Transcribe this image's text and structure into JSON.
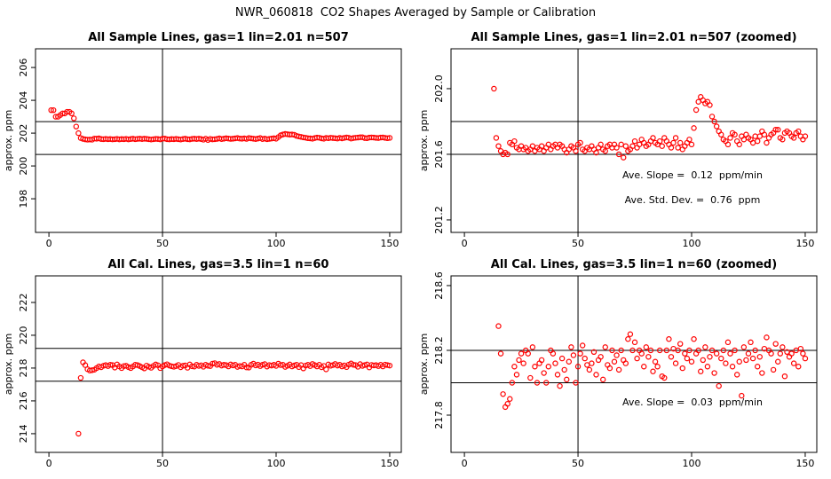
{
  "title": "NWR_060818  CO2 Shapes Averaged by Sample or Calibration",
  "chart_data": [
    {
      "type": "scatter",
      "title": "All Sample Lines, gas=1 lin=2.01 n=507",
      "ylabel": "approx. ppm",
      "color": "#ff0000",
      "xlim": [
        -5.9,
        155.1
      ],
      "ylim": [
        195.95,
        207.14
      ],
      "xticks": [
        0,
        50,
        100,
        150
      ],
      "yticks": [
        198,
        200,
        202,
        204,
        206
      ],
      "hlines": [
        200.7,
        202.7
      ],
      "vline": 50,
      "x": [
        1,
        2,
        3,
        4,
        5,
        6,
        7,
        8,
        9,
        10,
        11,
        12,
        13,
        14,
        15,
        16,
        17,
        18,
        19,
        20,
        21,
        22,
        23,
        24,
        25,
        26,
        27,
        28,
        29,
        30,
        31,
        32,
        33,
        34,
        35,
        36,
        37,
        38,
        39,
        40,
        41,
        42,
        43,
        44,
        45,
        46,
        47,
        48,
        49,
        50,
        51,
        52,
        53,
        54,
        55,
        56,
        57,
        58,
        59,
        60,
        61,
        62,
        63,
        64,
        65,
        66,
        67,
        68,
        69,
        70,
        71,
        72,
        73,
        74,
        75,
        76,
        77,
        78,
        79,
        80,
        81,
        82,
        83,
        84,
        85,
        86,
        87,
        88,
        89,
        90,
        91,
        92,
        93,
        94,
        95,
        96,
        97,
        98,
        99,
        100,
        101,
        102,
        103,
        104,
        105,
        106,
        107,
        108,
        109,
        110,
        111,
        112,
        113,
        114,
        115,
        116,
        117,
        118,
        119,
        120,
        121,
        122,
        123,
        124,
        125,
        126,
        127,
        128,
        129,
        130,
        131,
        132,
        133,
        134,
        135,
        136,
        137,
        138,
        139,
        140,
        141,
        142,
        143,
        144,
        145,
        146,
        147,
        148,
        149,
        150
      ],
      "values": [
        203.4,
        203.4,
        203.0,
        203.0,
        203.1,
        203.2,
        203.2,
        203.3,
        203.3,
        203.2,
        202.9,
        202.4,
        202.0,
        201.7,
        201.65,
        201.62,
        201.6,
        201.61,
        201.6,
        201.67,
        201.66,
        201.68,
        201.64,
        201.63,
        201.65,
        201.63,
        201.64,
        201.62,
        201.63,
        201.65,
        201.62,
        201.64,
        201.63,
        201.65,
        201.62,
        201.64,
        201.66,
        201.63,
        201.65,
        201.66,
        201.64,
        201.66,
        201.65,
        201.63,
        201.61,
        201.63,
        201.65,
        201.64,
        201.62,
        201.66,
        201.67,
        201.63,
        201.62,
        201.64,
        201.63,
        201.65,
        201.63,
        201.61,
        201.64,
        201.66,
        201.63,
        201.62,
        201.65,
        201.66,
        201.64,
        201.66,
        201.64,
        201.6,
        201.66,
        201.58,
        201.65,
        201.62,
        201.63,
        201.65,
        201.68,
        201.64,
        201.66,
        201.69,
        201.67,
        201.65,
        201.66,
        201.68,
        201.7,
        201.67,
        201.66,
        201.68,
        201.65,
        201.7,
        201.68,
        201.66,
        201.64,
        201.67,
        201.7,
        201.64,
        201.67,
        201.63,
        201.65,
        201.67,
        201.69,
        201.66,
        201.76,
        201.87,
        201.92,
        201.95,
        201.93,
        201.91,
        201.92,
        201.9,
        201.83,
        201.8,
        201.77,
        201.74,
        201.72,
        201.69,
        201.68,
        201.66,
        201.7,
        201.73,
        201.72,
        201.68,
        201.66,
        201.71,
        201.69,
        201.72,
        201.7,
        201.69,
        201.67,
        201.71,
        201.68,
        201.71,
        201.74,
        201.72,
        201.67,
        201.7,
        201.72,
        201.73,
        201.75,
        201.75,
        201.7,
        201.69,
        201.73,
        201.74,
        201.73,
        201.71,
        201.7,
        201.73,
        201.74,
        201.71,
        201.69,
        201.71
      ]
    },
    {
      "type": "scatter",
      "title": "All Sample Lines, gas=1 lin=2.01 n=507 (zoomed)",
      "ylabel": "approx. ppm",
      "color": "#ff0000",
      "xlim": [
        -5.9,
        155.1
      ],
      "ylim": [
        201.124,
        202.243
      ],
      "xticks": [
        0,
        50,
        100,
        150
      ],
      "yticks": [
        201.2,
        201.6,
        {
          "value": 202,
          "label": "202.0"
        }
      ],
      "hlines": [
        201.6,
        201.8
      ],
      "vline": 50,
      "annotations": [
        "Ave. Slope =  0.12  ppm/min",
        "Ave. Std. Dev. =  0.76  ppm"
      ],
      "x": [
        13,
        14,
        15,
        16,
        17,
        18,
        19,
        20,
        21,
        22,
        23,
        24,
        25,
        26,
        27,
        28,
        29,
        30,
        31,
        32,
        33,
        34,
        35,
        36,
        37,
        38,
        39,
        40,
        41,
        42,
        43,
        44,
        45,
        46,
        47,
        48,
        49,
        50,
        51,
        52,
        53,
        54,
        55,
        56,
        57,
        58,
        59,
        60,
        61,
        62,
        63,
        64,
        65,
        66,
        67,
        68,
        69,
        70,
        71,
        72,
        73,
        74,
        75,
        76,
        77,
        78,
        79,
        80,
        81,
        82,
        83,
        84,
        85,
        86,
        87,
        88,
        89,
        90,
        91,
        92,
        93,
        94,
        95,
        96,
        97,
        98,
        99,
        100,
        101,
        102,
        103,
        104,
        105,
        106,
        107,
        108,
        109,
        110,
        111,
        112,
        113,
        114,
        115,
        116,
        117,
        118,
        119,
        120,
        121,
        122,
        123,
        124,
        125,
        126,
        127,
        128,
        129,
        130,
        131,
        132,
        133,
        134,
        135,
        136,
        137,
        138,
        139,
        140,
        141,
        142,
        143,
        144,
        145,
        146,
        147,
        148,
        149,
        150
      ],
      "values": [
        202.0,
        201.7,
        201.65,
        201.62,
        201.6,
        201.61,
        201.6,
        201.67,
        201.66,
        201.68,
        201.64,
        201.63,
        201.65,
        201.63,
        201.64,
        201.62,
        201.63,
        201.65,
        201.62,
        201.64,
        201.63,
        201.65,
        201.62,
        201.64,
        201.66,
        201.63,
        201.65,
        201.66,
        201.64,
        201.66,
        201.65,
        201.63,
        201.61,
        201.63,
        201.65,
        201.64,
        201.62,
        201.66,
        201.67,
        201.63,
        201.62,
        201.64,
        201.63,
        201.65,
        201.63,
        201.61,
        201.64,
        201.66,
        201.63,
        201.62,
        201.65,
        201.66,
        201.64,
        201.66,
        201.64,
        201.6,
        201.66,
        201.58,
        201.65,
        201.62,
        201.63,
        201.65,
        201.68,
        201.64,
        201.66,
        201.69,
        201.67,
        201.65,
        201.66,
        201.68,
        201.7,
        201.67,
        201.66,
        201.68,
        201.65,
        201.7,
        201.68,
        201.66,
        201.64,
        201.67,
        201.7,
        201.64,
        201.67,
        201.63,
        201.65,
        201.67,
        201.69,
        201.66,
        201.76,
        201.87,
        201.92,
        201.95,
        201.93,
        201.91,
        201.92,
        201.9,
        201.83,
        201.8,
        201.77,
        201.74,
        201.72,
        201.69,
        201.68,
        201.66,
        201.7,
        201.73,
        201.72,
        201.68,
        201.66,
        201.71,
        201.69,
        201.72,
        201.7,
        201.69,
        201.67,
        201.71,
        201.68,
        201.71,
        201.74,
        201.72,
        201.67,
        201.7,
        201.72,
        201.73,
        201.75,
        201.75,
        201.7,
        201.69,
        201.73,
        201.74,
        201.73,
        201.71,
        201.7,
        201.73,
        201.74,
        201.71,
        201.69,
        201.71
      ]
    },
    {
      "type": "scatter",
      "title": "All Cal. Lines, gas=3.5 lin=1 n=60",
      "ylabel": "approx. ppm",
      "color": "#ff0000",
      "xlim": [
        -5.9,
        155.1
      ],
      "ylim": [
        212.86,
        223.62
      ],
      "xticks": [
        0,
        50,
        100,
        150
      ],
      "yticks": [
        214,
        216,
        218,
        220,
        222
      ],
      "hlines": [
        217.2,
        219.2
      ],
      "vline": 50,
      "x": [
        13,
        14,
        15,
        16,
        17,
        18,
        19,
        20,
        21,
        22,
        23,
        24,
        25,
        26,
        27,
        28,
        29,
        30,
        31,
        32,
        33,
        34,
        35,
        36,
        37,
        38,
        39,
        40,
        41,
        42,
        43,
        44,
        45,
        46,
        47,
        48,
        49,
        50,
        51,
        52,
        53,
        54,
        55,
        56,
        57,
        58,
        59,
        60,
        61,
        62,
        63,
        64,
        65,
        66,
        67,
        68,
        69,
        70,
        71,
        72,
        73,
        74,
        75,
        76,
        77,
        78,
        79,
        80,
        81,
        82,
        83,
        84,
        85,
        86,
        87,
        88,
        89,
        90,
        91,
        92,
        93,
        94,
        95,
        96,
        97,
        98,
        99,
        100,
        101,
        102,
        103,
        104,
        105,
        106,
        107,
        108,
        109,
        110,
        111,
        112,
        113,
        114,
        115,
        116,
        117,
        118,
        119,
        120,
        121,
        122,
        123,
        124,
        125,
        126,
        127,
        128,
        129,
        130,
        131,
        132,
        133,
        134,
        135,
        136,
        137,
        138,
        139,
        140,
        141,
        142,
        143,
        144,
        145,
        146,
        147,
        148,
        149,
        150
      ],
      "values": [
        214.0,
        217.4,
        218.35,
        218.18,
        217.93,
        217.85,
        217.87,
        217.9,
        218.0,
        218.1,
        218.05,
        218.14,
        218.18,
        218.12,
        218.2,
        218.18,
        218.03,
        218.22,
        218.1,
        218.0,
        218.12,
        218.14,
        218.06,
        218.0,
        218.1,
        218.2,
        218.18,
        218.12,
        218.05,
        217.98,
        218.15,
        218.08,
        218.02,
        218.13,
        218.22,
        218.17,
        218.0,
        218.1,
        218.18,
        218.23,
        218.15,
        218.11,
        218.08,
        218.12,
        218.19,
        218.05,
        218.14,
        218.16,
        218.02,
        218.22,
        218.11,
        218.09,
        218.2,
        218.13,
        218.17,
        218.08,
        218.2,
        218.14,
        218.12,
        218.27,
        218.3,
        218.2,
        218.25,
        218.15,
        218.2,
        218.18,
        218.1,
        218.22,
        218.16,
        218.2,
        218.07,
        218.13,
        218.1,
        218.2,
        218.04,
        218.03,
        218.2,
        218.27,
        218.16,
        218.21,
        218.12,
        218.2,
        218.24,
        218.09,
        218.18,
        218.15,
        218.2,
        218.13,
        218.27,
        218.18,
        218.2,
        218.07,
        218.14,
        218.22,
        218.1,
        218.16,
        218.2,
        218.06,
        218.18,
        217.98,
        218.15,
        218.2,
        218.12,
        218.25,
        218.18,
        218.1,
        218.2,
        218.05,
        218.13,
        217.92,
        218.22,
        218.14,
        218.18,
        218.25,
        218.15,
        218.2,
        218.1,
        218.16,
        218.06,
        218.21,
        218.28,
        218.2,
        218.18,
        218.08,
        218.24,
        218.13,
        218.18,
        218.22,
        218.04,
        218.19,
        218.16,
        218.18,
        218.12,
        218.2,
        218.1,
        218.21,
        218.18,
        218.15
      ]
    },
    {
      "type": "scatter",
      "title": "All Cal. Lines, gas=3.5 lin=1 n=60 (zoomed)",
      "ylabel": "approx. ppm",
      "color": "#ff0000",
      "xlim": [
        -5.9,
        155.1
      ],
      "ylim": [
        217.57,
        218.66
      ],
      "xticks": [
        0,
        50,
        100,
        150
      ],
      "yticks": [
        217.8,
        218.2,
        218.6
      ],
      "hlines": [
        218.0,
        218.2
      ],
      "vline": 50,
      "annotations": [
        "Ave. Slope =  0.03  ppm/min"
      ],
      "x": [
        15,
        16,
        17,
        18,
        19,
        20,
        21,
        22,
        23,
        24,
        25,
        26,
        27,
        28,
        29,
        30,
        31,
        32,
        33,
        34,
        35,
        36,
        37,
        38,
        39,
        40,
        41,
        42,
        43,
        44,
        45,
        46,
        47,
        48,
        49,
        50,
        51,
        52,
        53,
        54,
        55,
        56,
        57,
        58,
        59,
        60,
        61,
        62,
        63,
        64,
        65,
        66,
        67,
        68,
        69,
        70,
        71,
        72,
        73,
        74,
        75,
        76,
        77,
        78,
        79,
        80,
        81,
        82,
        83,
        84,
        85,
        86,
        87,
        88,
        89,
        90,
        91,
        92,
        93,
        94,
        95,
        96,
        97,
        98,
        99,
        100,
        101,
        102,
        103,
        104,
        105,
        106,
        107,
        108,
        109,
        110,
        111,
        112,
        113,
        114,
        115,
        116,
        117,
        118,
        119,
        120,
        121,
        122,
        123,
        124,
        125,
        126,
        127,
        128,
        129,
        130,
        131,
        132,
        133,
        134,
        135,
        136,
        137,
        138,
        139,
        140,
        141,
        142,
        143,
        144,
        145,
        146,
        147,
        148,
        149,
        150
      ],
      "values": [
        218.35,
        218.18,
        217.93,
        217.85,
        217.87,
        217.9,
        218.0,
        218.1,
        218.05,
        218.14,
        218.18,
        218.12,
        218.2,
        218.18,
        218.03,
        218.22,
        218.1,
        218.0,
        218.12,
        218.14,
        218.06,
        218.0,
        218.1,
        218.2,
        218.18,
        218.12,
        218.05,
        217.98,
        218.15,
        218.08,
        218.02,
        218.13,
        218.22,
        218.17,
        218.0,
        218.1,
        218.18,
        218.23,
        218.15,
        218.11,
        218.08,
        218.12,
        218.19,
        218.05,
        218.14,
        218.16,
        218.02,
        218.22,
        218.11,
        218.09,
        218.2,
        218.13,
        218.17,
        218.08,
        218.2,
        218.14,
        218.12,
        218.27,
        218.3,
        218.2,
        218.25,
        218.15,
        218.2,
        218.18,
        218.1,
        218.22,
        218.16,
        218.2,
        218.07,
        218.13,
        218.1,
        218.2,
        218.04,
        218.03,
        218.2,
        218.27,
        218.16,
        218.21,
        218.12,
        218.2,
        218.24,
        218.09,
        218.18,
        218.15,
        218.2,
        218.13,
        218.27,
        218.18,
        218.2,
        218.07,
        218.14,
        218.22,
        218.1,
        218.16,
        218.2,
        218.06,
        218.18,
        217.98,
        218.15,
        218.2,
        218.12,
        218.25,
        218.18,
        218.1,
        218.2,
        218.05,
        218.13,
        217.92,
        218.22,
        218.14,
        218.18,
        218.25,
        218.15,
        218.2,
        218.1,
        218.16,
        218.06,
        218.21,
        218.28,
        218.2,
        218.18,
        218.08,
        218.24,
        218.13,
        218.18,
        218.22,
        218.04,
        218.19,
        218.16,
        218.18,
        218.12,
        218.2,
        218.1,
        218.21,
        218.18,
        218.15
      ]
    }
  ]
}
